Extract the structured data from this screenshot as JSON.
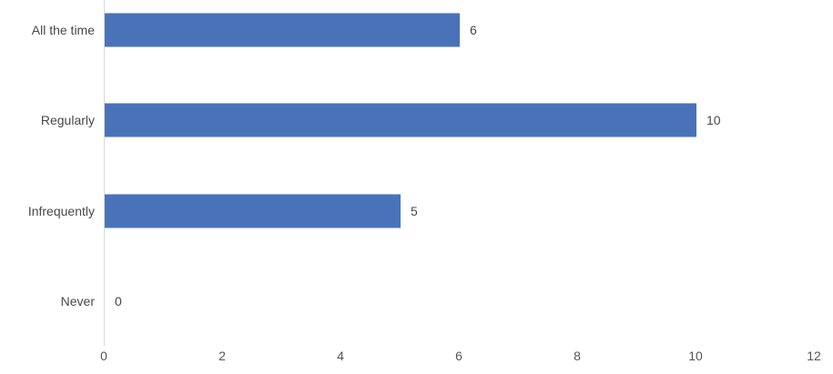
{
  "chart_data": {
    "type": "bar",
    "orientation": "horizontal",
    "title": "",
    "xlabel": "",
    "ylabel": "",
    "categories": [
      "All the time",
      "Regularly",
      "Infrequently",
      "Never"
    ],
    "values": [
      6,
      10,
      5,
      0
    ],
    "data_labels": [
      "6",
      "10",
      "5",
      "0"
    ],
    "x_ticks": [
      "0",
      "2",
      "4",
      "6",
      "8",
      "10",
      "12"
    ],
    "x_tick_values": [
      0,
      2,
      4,
      6,
      8,
      10,
      12
    ],
    "xlim": [
      0,
      12
    ],
    "grid": false,
    "legend": false,
    "data_labels_shown": true,
    "colors": {
      "bar": "#4A72B9",
      "axis_line": "#d9d9d9",
      "category_text": "#484848",
      "data_label_text": "#484848",
      "tick_text": "#555555",
      "background": "#ffffff"
    }
  }
}
